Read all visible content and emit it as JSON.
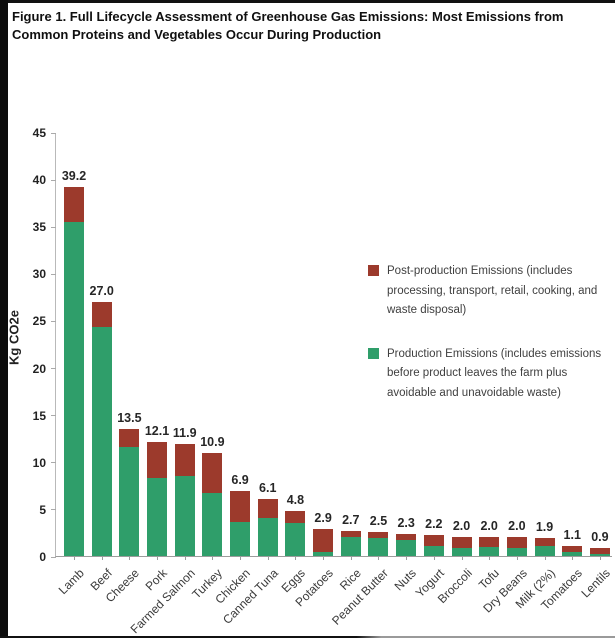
{
  "figure": {
    "title": "Figure 1. Full Lifecycle Assessment of Greenhouse Gas Emissions: Most Emissions from Common Proteins and Vegetables Occur During Production"
  },
  "colors": {
    "production": "#2f9e6a",
    "post_production": "#9c3a2c",
    "axis": "#9c9c9c",
    "text": "#262626"
  },
  "chart_data": {
    "type": "bar",
    "stacked": true,
    "title": "Figure 1. Full Lifecycle Assessment of Greenhouse Gas Emissions: Most Emissions from Common Proteins and Vegetables Occur During Production",
    "xlabel": "",
    "ylabel": "Kg CO2e",
    "ylim": [
      0,
      45
    ],
    "ytick_interval": 5,
    "grid": false,
    "legend_position": "center-right",
    "categories": [
      "Lamb",
      "Beef",
      "Cheese",
      "Pork",
      "Farmed Salmon",
      "Turkey",
      "Chicken",
      "Canned Tuna",
      "Eggs",
      "Potatoes",
      "Rice",
      "Peanut Butter",
      "Nuts",
      "Yogurt",
      "Broccoli",
      "Tofu",
      "Dry Beans",
      "Milk (2%)",
      "Tomatoes",
      "Lentils"
    ],
    "total_labels": [
      "39.2",
      "27.0",
      "13.5",
      "12.1",
      "11.9",
      "10.9",
      "6.9",
      "6.1",
      "4.8",
      "2.9",
      "2.7",
      "2.5",
      "2.3",
      "2.2",
      "2.0",
      "2.0",
      "2.0",
      "1.9",
      "1.1",
      "0.9"
    ],
    "totals": [
      39.2,
      27.0,
      13.5,
      12.1,
      11.9,
      10.9,
      6.9,
      6.1,
      4.8,
      2.9,
      2.7,
      2.5,
      2.3,
      2.2,
      2.0,
      2.0,
      2.0,
      1.9,
      1.1,
      0.9
    ],
    "series": [
      {
        "name": "Production Emissions",
        "color": "#2f9e6a",
        "values": [
          35.4,
          24.3,
          11.6,
          8.3,
          8.5,
          6.7,
          3.6,
          4.0,
          3.5,
          0.4,
          2.0,
          1.9,
          1.7,
          1.1,
          0.9,
          1.0,
          0.9,
          1.1,
          0.4,
          0.2
        ]
      },
      {
        "name": "Post-production Emissions",
        "color": "#9c3a2c",
        "values": [
          3.8,
          2.7,
          1.9,
          3.8,
          3.4,
          4.2,
          3.3,
          2.1,
          1.3,
          2.5,
          0.7,
          0.6,
          0.6,
          1.1,
          1.1,
          1.0,
          1.1,
          0.8,
          0.7,
          0.7
        ]
      }
    ],
    "legend": [
      {
        "label": "Post-production Emissions (includes processing, transport, retail, cooking, and waste disposal)",
        "color": "#9c3a2c"
      },
      {
        "label": "Production Emissions (includes emissions before product leaves the farm plus avoidable and unavoidable waste)",
        "color": "#2f9e6a"
      }
    ],
    "ytick_labels": [
      "0",
      "5",
      "10",
      "15",
      "20",
      "25",
      "30",
      "35",
      "40",
      "45"
    ]
  }
}
